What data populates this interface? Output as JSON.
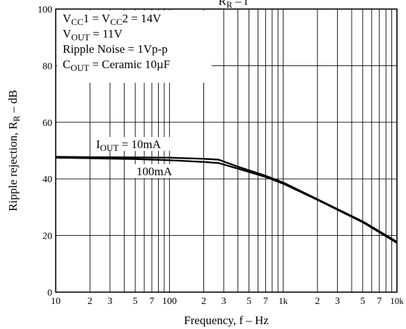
{
  "chart_data": {
    "type": "line",
    "title": {
      "main": "R",
      "sub": "R",
      "rest": " – f"
    },
    "xlabel": "Frequency, f – Hz",
    "ylabel": {
      "main": "Ripple rejection, R",
      "sub": "R",
      "rest": " – dB"
    },
    "x_scale": "log",
    "xlim": [
      10,
      10000
    ],
    "ylim": [
      0,
      100
    ],
    "grid": true,
    "x_ticks": [
      {
        "value": 10,
        "label": "10"
      },
      {
        "value": 20,
        "label": "2"
      },
      {
        "value": 30,
        "label": "3"
      },
      {
        "value": 50,
        "label": "5"
      },
      {
        "value": 70,
        "label": "7"
      },
      {
        "value": 100,
        "label": "100"
      },
      {
        "value": 200,
        "label": "2"
      },
      {
        "value": 300,
        "label": "3"
      },
      {
        "value": 500,
        "label": "5"
      },
      {
        "value": 700,
        "label": "7"
      },
      {
        "value": 1000,
        "label": "1k"
      },
      {
        "value": 2000,
        "label": "2"
      },
      {
        "value": 3000,
        "label": "3"
      },
      {
        "value": 5000,
        "label": "5"
      },
      {
        "value": 7000,
        "label": "7"
      },
      {
        "value": 10000,
        "label": "10k"
      }
    ],
    "x_grid": [
      20,
      30,
      40,
      50,
      60,
      70,
      80,
      90,
      100,
      200,
      300,
      400,
      500,
      600,
      700,
      800,
      900,
      1000,
      2000,
      3000,
      4000,
      5000,
      6000,
      7000,
      8000,
      9000
    ],
    "y_ticks": [
      0,
      20,
      40,
      60,
      80,
      100
    ],
    "y_grid": [
      20,
      40,
      60,
      80
    ],
    "conditions": [
      [
        {
          "t": "V"
        },
        {
          "t": "CC",
          "sub": true
        },
        {
          "t": "1 = V"
        },
        {
          "t": "CC",
          "sub": true
        },
        {
          "t": "2 = 14V"
        }
      ],
      [
        {
          "t": "V"
        },
        {
          "t": "OUT",
          "sub": true
        },
        {
          "t": " = 11V"
        }
      ],
      [
        {
          "t": "Ripple Noise = 1Vp-p"
        }
      ],
      [
        {
          "t": "C"
        },
        {
          "t": "OUT",
          "sub": true
        },
        {
          "t": " = Ceramic 10µF"
        }
      ]
    ],
    "series": [
      {
        "name": [
          {
            "t": "I"
          },
          {
            "t": "OUT",
            "sub": true
          },
          {
            "t": " = 10mA"
          }
        ],
        "x": [
          10,
          20,
          50,
          100,
          200,
          270,
          400,
          700,
          1000,
          2000,
          5000,
          10000
        ],
        "y": [
          47.8,
          47.7,
          47.6,
          47.5,
          47.1,
          46.8,
          44.3,
          41.1,
          38.7,
          32.8,
          25.0,
          17.8
        ]
      },
      {
        "name": [
          {
            "t": "100mA"
          }
        ],
        "x": [
          10,
          20,
          50,
          100,
          200,
          270,
          400,
          700,
          1000,
          2000,
          5000,
          10000
        ],
        "y": [
          47.5,
          47.3,
          47.0,
          46.6,
          46.0,
          45.6,
          43.6,
          40.7,
          38.3,
          32.6,
          24.7,
          17.4
        ]
      }
    ]
  }
}
